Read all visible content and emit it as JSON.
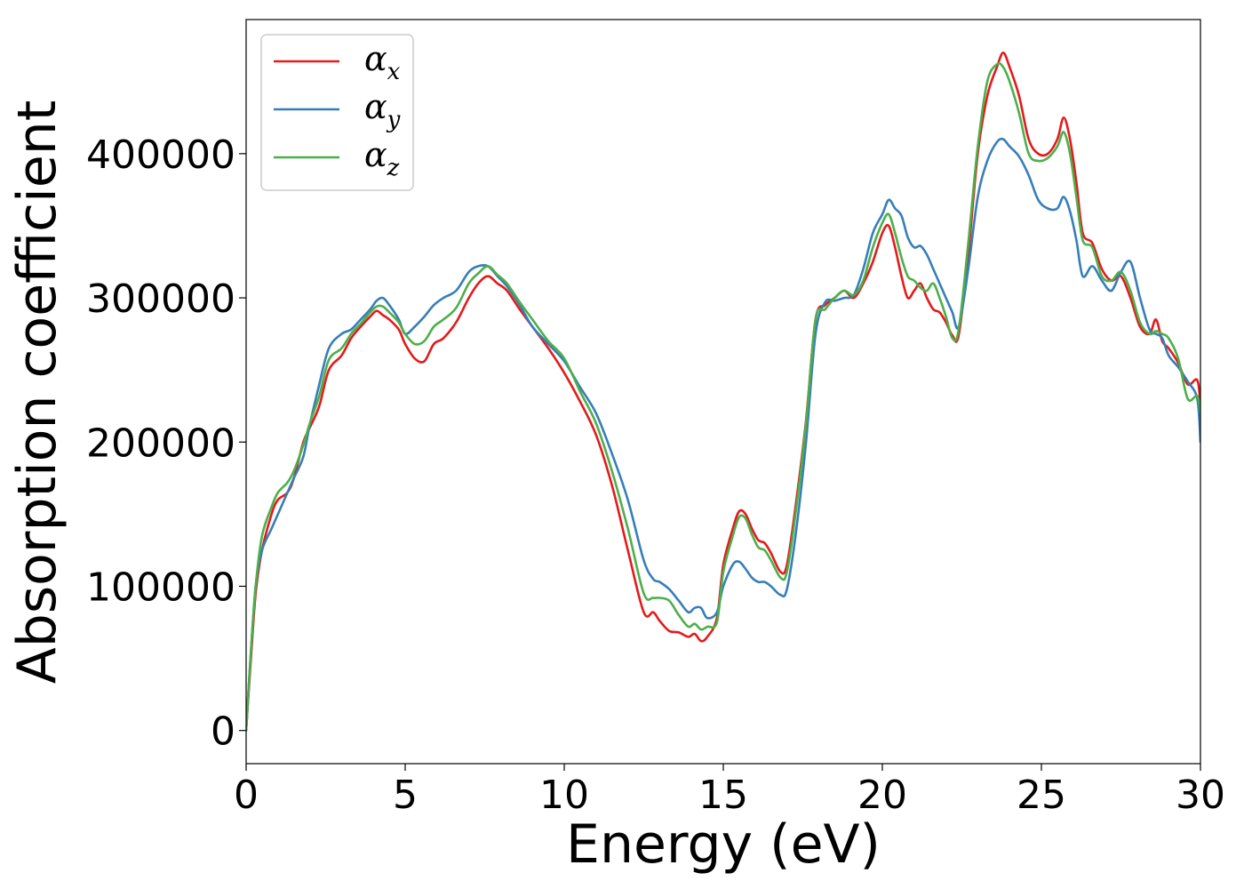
{
  "chart_data": {
    "type": "line",
    "xlabel": "Energy (eV)",
    "ylabel": "Absorption coefficient",
    "xlim": [
      0,
      30
    ],
    "ylim": [
      -23000,
      493000
    ],
    "xticks": [
      "0",
      "5",
      "10",
      "15",
      "20",
      "25",
      "30"
    ],
    "yticks": [
      "0",
      "100000",
      "200000",
      "300000",
      "400000"
    ],
    "grid": false,
    "legend_position": "top-left",
    "series": [
      {
        "name": "α_x",
        "label_base": "α",
        "label_sub": "x",
        "color": "#e41a1c",
        "x": [
          0,
          0.15,
          0.3,
          0.5,
          0.8,
          1.0,
          1.3,
          1.5,
          1.8,
          2.0,
          2.3,
          2.6,
          3.0,
          3.3,
          3.6,
          3.9,
          4.1,
          4.3,
          4.5,
          4.8,
          5.0,
          5.3,
          5.6,
          5.9,
          6.2,
          6.6,
          7.0,
          7.3,
          7.6,
          7.9,
          8.2,
          8.6,
          9.0,
          9.5,
          10.0,
          10.5,
          11.0,
          11.5,
          12.0,
          12.5,
          12.8,
          13.0,
          13.3,
          13.6,
          13.9,
          14.1,
          14.3,
          14.5,
          14.8,
          15.0,
          15.3,
          15.5,
          15.7,
          15.9,
          16.1,
          16.3,
          16.5,
          16.8,
          17.0,
          17.3,
          17.6,
          17.9,
          18.2,
          18.5,
          18.8,
          19.1,
          19.4,
          19.7,
          20.0,
          20.2,
          20.4,
          20.6,
          20.8,
          21.0,
          21.2,
          21.4,
          21.6,
          21.8,
          22.0,
          22.2,
          22.4,
          22.7,
          23.0,
          23.3,
          23.6,
          23.8,
          24.0,
          24.3,
          24.6,
          24.9,
          25.2,
          25.5,
          25.7,
          25.9,
          26.1,
          26.3,
          26.6,
          26.9,
          27.2,
          27.5,
          27.8,
          28.1,
          28.4,
          28.6,
          28.8,
          29.0,
          29.3,
          29.6,
          29.9,
          30.0
        ],
        "y": [
          0,
          50000,
          95000,
          125000,
          150000,
          160000,
          165000,
          175000,
          200000,
          210000,
          225000,
          250000,
          260000,
          272000,
          280000,
          287000,
          291000,
          288000,
          285000,
          278000,
          268000,
          258000,
          256000,
          268000,
          272000,
          283000,
          300000,
          310000,
          315000,
          310000,
          305000,
          292000,
          280000,
          265000,
          248000,
          228000,
          205000,
          170000,
          125000,
          82000,
          82000,
          76000,
          69000,
          68000,
          65000,
          67000,
          62000,
          65000,
          78000,
          115000,
          140000,
          152000,
          150000,
          140000,
          132000,
          130000,
          123000,
          110000,
          115000,
          160000,
          215000,
          285000,
          295000,
          300000,
          305000,
          300000,
          310000,
          325000,
          345000,
          350000,
          335000,
          315000,
          300000,
          305000,
          310000,
          300000,
          292000,
          290000,
          283000,
          274000,
          274000,
          330000,
          400000,
          440000,
          460000,
          470000,
          460000,
          440000,
          410000,
          400000,
          400000,
          410000,
          425000,
          410000,
          380000,
          345000,
          338000,
          320000,
          312000,
          315000,
          300000,
          280000,
          275000,
          285000,
          270000,
          265000,
          255000,
          240000,
          243000,
          225000
        ]
      },
      {
        "name": "α_y",
        "label_base": "α",
        "label_sub": "y",
        "color": "#377eb8",
        "x": [
          0,
          0.15,
          0.3,
          0.5,
          0.8,
          1.0,
          1.3,
          1.5,
          1.8,
          2.0,
          2.3,
          2.6,
          3.0,
          3.3,
          3.6,
          3.9,
          4.1,
          4.3,
          4.5,
          4.8,
          5.0,
          5.3,
          5.6,
          5.9,
          6.2,
          6.6,
          7.0,
          7.3,
          7.6,
          7.9,
          8.2,
          8.6,
          9.0,
          9.5,
          10.0,
          10.5,
          11.0,
          11.5,
          12.0,
          12.5,
          12.8,
          13.0,
          13.3,
          13.6,
          13.9,
          14.1,
          14.3,
          14.5,
          14.8,
          15.0,
          15.3,
          15.5,
          15.7,
          15.9,
          16.1,
          16.3,
          16.5,
          16.8,
          17.0,
          17.3,
          17.6,
          17.9,
          18.2,
          18.5,
          18.8,
          19.1,
          19.4,
          19.7,
          20.0,
          20.2,
          20.4,
          20.6,
          20.8,
          21.0,
          21.2,
          21.4,
          21.6,
          21.8,
          22.0,
          22.2,
          22.4,
          22.7,
          23.0,
          23.3,
          23.6,
          23.8,
          24.0,
          24.3,
          24.6,
          24.9,
          25.2,
          25.5,
          25.7,
          25.9,
          26.1,
          26.3,
          26.6,
          26.9,
          27.2,
          27.5,
          27.8,
          28.1,
          28.4,
          28.6,
          28.8,
          29.0,
          29.3,
          29.6,
          29.9,
          30.0
        ],
        "y": [
          0,
          55000,
          100000,
          125000,
          140000,
          150000,
          165000,
          175000,
          190000,
          212000,
          240000,
          265000,
          275000,
          278000,
          285000,
          292000,
          298000,
          300000,
          295000,
          285000,
          275000,
          280000,
          287000,
          295000,
          300000,
          305000,
          318000,
          322000,
          322000,
          315000,
          308000,
          295000,
          280000,
          268000,
          256000,
          238000,
          220000,
          192000,
          160000,
          118000,
          105000,
          103000,
          98000,
          90000,
          82000,
          85000,
          85000,
          78000,
          82000,
          100000,
          115000,
          117000,
          112000,
          106000,
          103000,
          103000,
          100000,
          94000,
          98000,
          140000,
          200000,
          275000,
          297000,
          298000,
          300000,
          302000,
          320000,
          345000,
          358000,
          368000,
          362000,
          357000,
          342000,
          335000,
          336000,
          330000,
          320000,
          310000,
          300000,
          290000,
          280000,
          320000,
          370000,
          395000,
          408000,
          410000,
          405000,
          398000,
          385000,
          368000,
          362000,
          362000,
          370000,
          360000,
          340000,
          315000,
          322000,
          312000,
          305000,
          318000,
          325000,
          300000,
          278000,
          275000,
          272000,
          260000,
          252000,
          242000,
          230000,
          200000
        ]
      },
      {
        "name": "α_z",
        "label_base": "α",
        "label_sub": "z",
        "color": "#4daf4a",
        "x": [
          0,
          0.15,
          0.3,
          0.5,
          0.8,
          1.0,
          1.3,
          1.5,
          1.8,
          2.0,
          2.3,
          2.6,
          3.0,
          3.3,
          3.6,
          3.9,
          4.1,
          4.3,
          4.5,
          4.8,
          5.0,
          5.3,
          5.6,
          5.9,
          6.2,
          6.6,
          7.0,
          7.3,
          7.6,
          7.9,
          8.2,
          8.6,
          9.0,
          9.5,
          10.0,
          10.5,
          11.0,
          11.5,
          12.0,
          12.5,
          12.8,
          13.0,
          13.3,
          13.6,
          13.9,
          14.1,
          14.3,
          14.5,
          14.8,
          15.0,
          15.3,
          15.5,
          15.7,
          15.9,
          16.1,
          16.3,
          16.5,
          16.8,
          17.0,
          17.3,
          17.6,
          17.9,
          18.2,
          18.5,
          18.8,
          19.1,
          19.4,
          19.7,
          20.0,
          20.2,
          20.4,
          20.6,
          20.8,
          21.0,
          21.2,
          21.4,
          21.6,
          21.8,
          22.0,
          22.2,
          22.4,
          22.7,
          23.0,
          23.3,
          23.6,
          23.8,
          24.0,
          24.3,
          24.6,
          24.9,
          25.2,
          25.5,
          25.7,
          25.9,
          26.1,
          26.3,
          26.6,
          26.9,
          27.2,
          27.5,
          27.8,
          28.1,
          28.4,
          28.6,
          28.8,
          29.0,
          29.3,
          29.6,
          29.9,
          30.0
        ],
        "y": [
          0,
          55000,
          100000,
          135000,
          155000,
          165000,
          172000,
          180000,
          198000,
          213000,
          232000,
          257000,
          265000,
          275000,
          282000,
          290000,
          294000,
          294000,
          290000,
          283000,
          275000,
          268000,
          270000,
          280000,
          285000,
          293000,
          310000,
          317000,
          322000,
          316000,
          310000,
          297000,
          285000,
          270000,
          258000,
          235000,
          213000,
          180000,
          140000,
          95000,
          92000,
          92000,
          90000,
          80000,
          72000,
          74000,
          70000,
          72000,
          75000,
          110000,
          135000,
          148000,
          147000,
          136000,
          127000,
          125000,
          118000,
          106000,
          110000,
          155000,
          213000,
          285000,
          292000,
          300000,
          305000,
          302000,
          312000,
          335000,
          352000,
          358000,
          345000,
          328000,
          315000,
          312000,
          307000,
          305000,
          310000,
          300000,
          287000,
          272000,
          278000,
          338000,
          405000,
          450000,
          462000,
          460000,
          450000,
          428000,
          400000,
          395000,
          397000,
          405000,
          415000,
          400000,
          370000,
          340000,
          335000,
          315000,
          312000,
          318000,
          305000,
          283000,
          275000,
          277000,
          275000,
          272000,
          258000,
          230000,
          232000,
          220000
        ]
      }
    ]
  }
}
